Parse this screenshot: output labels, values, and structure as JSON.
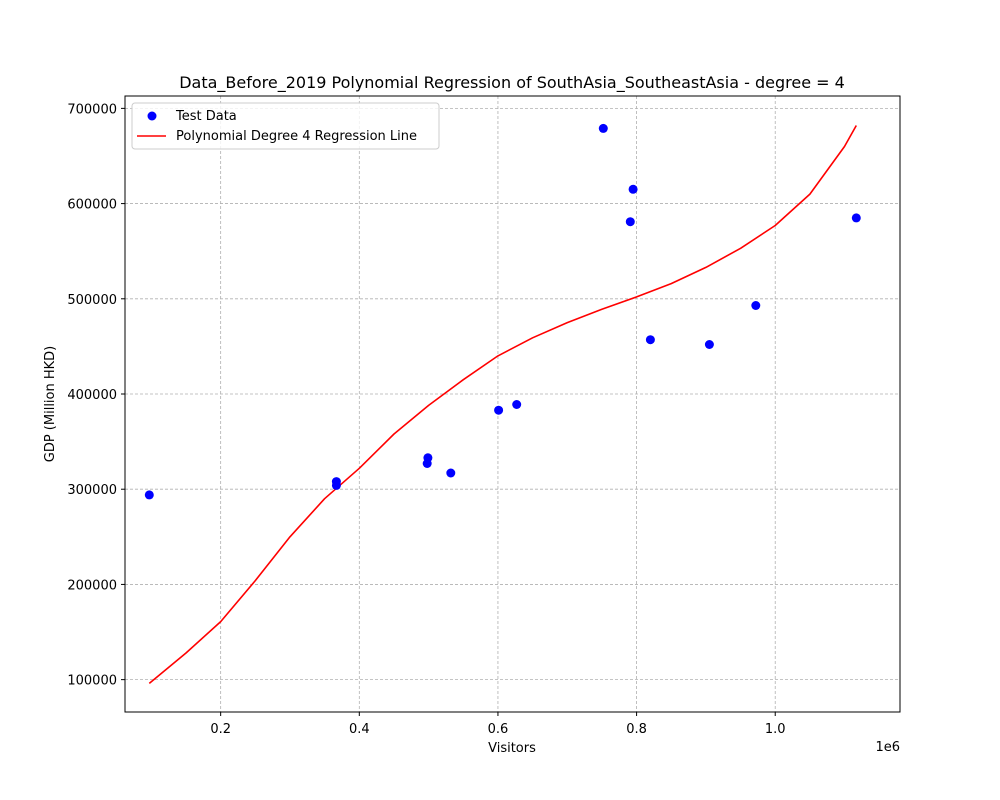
{
  "chart_data": {
    "type": "scatter",
    "title": "Data_Before_2019 Polynomial Regression of SouthAsia_SoutheastAsia - degree = 4",
    "xlabel": "Visitors",
    "ylabel": "GDP (Million HKD)",
    "x_offset_label": "1e6",
    "xlim": [
      0.062,
      1.18
    ],
    "ylim": [
      66000,
      713000
    ],
    "x_ticks": [
      0.2,
      0.4,
      0.6,
      0.8,
      1.0
    ],
    "x_tick_labels": [
      "0.2",
      "0.4",
      "0.6",
      "0.8",
      "1.0"
    ],
    "y_ticks": [
      100000,
      200000,
      300000,
      400000,
      500000,
      600000,
      700000
    ],
    "y_tick_labels": [
      "100000",
      "200000",
      "300000",
      "400000",
      "500000",
      "600000",
      "700000"
    ],
    "grid": true,
    "legend_position": "top-left",
    "series": [
      {
        "name": "Test Data",
        "kind": "scatter",
        "color": "#0000ff",
        "points": [
          [
            0.097,
            294000
          ],
          [
            0.367,
            308000
          ],
          [
            0.367,
            304000
          ],
          [
            0.499,
            333000
          ],
          [
            0.498,
            327000
          ],
          [
            0.532,
            317000
          ],
          [
            0.601,
            383000
          ],
          [
            0.627,
            389000
          ],
          [
            0.752,
            679000
          ],
          [
            0.791,
            581000
          ],
          [
            0.795,
            615000
          ],
          [
            0.82,
            457000
          ],
          [
            0.905,
            452000
          ],
          [
            0.972,
            493000
          ],
          [
            1.117,
            585000
          ]
        ]
      },
      {
        "name": "Polynomial Degree 4 Regression Line",
        "kind": "line",
        "color": "#ff0000",
        "points": [
          [
            0.097,
            96000
          ],
          [
            0.15,
            128000
          ],
          [
            0.2,
            161000
          ],
          [
            0.25,
            204000
          ],
          [
            0.3,
            250000
          ],
          [
            0.35,
            290000
          ],
          [
            0.4,
            322000
          ],
          [
            0.45,
            358000
          ],
          [
            0.5,
            388000
          ],
          [
            0.55,
            415000
          ],
          [
            0.6,
            440000
          ],
          [
            0.65,
            459000
          ],
          [
            0.7,
            475000
          ],
          [
            0.75,
            489000
          ],
          [
            0.8,
            502000
          ],
          [
            0.85,
            516000
          ],
          [
            0.9,
            533000
          ],
          [
            0.95,
            553000
          ],
          [
            1.0,
            577000
          ],
          [
            1.05,
            610000
          ],
          [
            1.1,
            660000
          ],
          [
            1.117,
            682000
          ]
        ]
      }
    ]
  }
}
